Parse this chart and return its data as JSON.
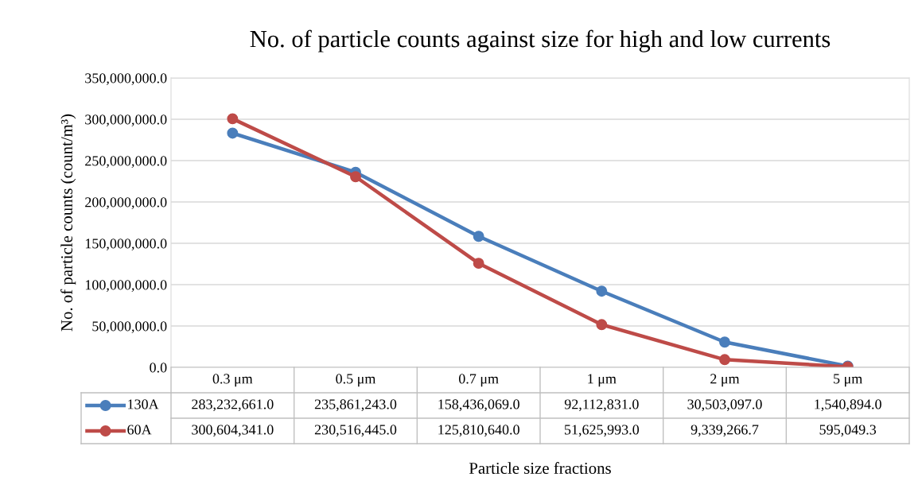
{
  "chart_data": {
    "type": "line",
    "title": "No. of particle counts against size for high and low currents",
    "xlabel": "Particle size fractions",
    "ylabel": "No. of particle counts (count/m³)",
    "categories": [
      "0.3 μm",
      "0.5 μm",
      "0.7 μm",
      "1 μm",
      "2 μm",
      "5 μm"
    ],
    "series": [
      {
        "name": "130A",
        "color": "#4a7ebb",
        "values": [
          283232661.0,
          235861243.0,
          158436069.0,
          92112831.0,
          30503097.0,
          1540894.0
        ],
        "value_labels": [
          "283,232,661.0",
          "235,861,243.0",
          "158,436,069.0",
          "92,112,831.0",
          "30,503,097.0",
          "1,540,894.0"
        ]
      },
      {
        "name": "60A",
        "color": "#be4b48",
        "values": [
          300604341.0,
          230516445.0,
          125810640.0,
          51625993.0,
          9339266.7,
          595049.3
        ],
        "value_labels": [
          "300,604,341.0",
          "230,516,445.0",
          "125,810,640.0",
          "51,625,993.0",
          "9,339,266.7",
          "595,049.3"
        ]
      }
    ],
    "ylim": [
      0,
      350000000
    ],
    "yticks": [
      {
        "value": 0,
        "label": "0.0"
      },
      {
        "value": 50000000,
        "label": "50,000,000.0"
      },
      {
        "value": 100000000,
        "label": "100,000,000.0"
      },
      {
        "value": 150000000,
        "label": "150,000,000.0"
      },
      {
        "value": 200000000,
        "label": "200,000,000.0"
      },
      {
        "value": 250000000,
        "label": "250,000,000.0"
      },
      {
        "value": 300000000,
        "label": "300,000,000.0"
      },
      {
        "value": 350000000,
        "label": "350,000,000.0"
      }
    ],
    "grid": "y",
    "marker": "circle",
    "line_style": "solid",
    "legend": "left"
  }
}
